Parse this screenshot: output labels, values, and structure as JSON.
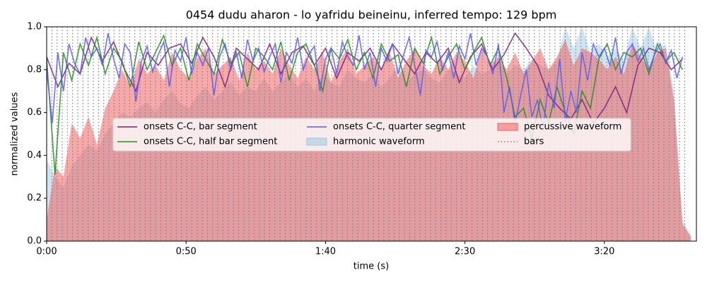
{
  "chart_data": {
    "type": "line",
    "title": "0454 dudu aharon - lo yafridu beineinu, inferred tempo: 129 bpm",
    "xlabel": "time (s)",
    "ylabel": "normalized values",
    "xlim": [
      0,
      233
    ],
    "ylim": [
      0,
      1
    ],
    "xticks": [
      {
        "value": 0,
        "label": "0:00"
      },
      {
        "value": 50,
        "label": "0:50"
      },
      {
        "value": 100,
        "label": "1:40"
      },
      {
        "value": 150,
        "label": "2:30"
      },
      {
        "value": 200,
        "label": "3:20"
      }
    ],
    "yticks": [
      {
        "value": 0,
        "label": "0.0"
      },
      0.2,
      0.4,
      0.6,
      0.8,
      {
        "value": 1,
        "label": "1.0"
      }
    ],
    "legend": "upper center",
    "series": [
      {
        "name": "onsets C-C, bar segment",
        "kind": "line",
        "color": "#7b1f7b",
        "x": [
          0,
          4,
          8,
          12,
          16,
          20,
          24,
          28,
          32,
          36,
          40,
          44,
          48,
          52,
          56,
          60,
          64,
          68,
          72,
          76,
          80,
          84,
          88,
          92,
          96,
          100,
          104,
          108,
          112,
          116,
          120,
          124,
          128,
          132,
          136,
          140,
          144,
          148,
          152,
          156,
          160,
          164,
          168,
          172,
          176,
          180,
          184,
          188,
          192,
          196,
          200,
          204,
          208,
          212,
          216,
          220,
          224,
          228
        ],
        "values": [
          0.86,
          0.72,
          0.83,
          0.78,
          0.95,
          0.84,
          0.93,
          0.8,
          0.7,
          0.88,
          0.82,
          0.9,
          0.92,
          0.83,
          0.95,
          0.86,
          0.72,
          0.9,
          0.85,
          0.8,
          0.92,
          0.78,
          0.88,
          0.91,
          0.82,
          0.9,
          0.76,
          0.88,
          0.84,
          0.9,
          0.8,
          0.92,
          0.85,
          0.78,
          0.88,
          0.83,
          0.9,
          0.74,
          0.86,
          0.92,
          0.8,
          0.87,
          0.97,
          0.9,
          0.82,
          0.68,
          0.62,
          0.57,
          0.66,
          0.55,
          0.62,
          0.72,
          0.6,
          0.82,
          0.9,
          0.88,
          0.8,
          0.85
        ]
      },
      {
        "name": "onsets C-C, half bar segment",
        "kind": "line",
        "color": "#228b22",
        "x": [
          0,
          3,
          6,
          9,
          12,
          15,
          18,
          21,
          24,
          27,
          30,
          33,
          36,
          39,
          42,
          45,
          48,
          51,
          54,
          57,
          60,
          63,
          66,
          69,
          72,
          75,
          78,
          81,
          84,
          87,
          90,
          93,
          96,
          99,
          102,
          105,
          108,
          111,
          114,
          117,
          120,
          123,
          126,
          129,
          132,
          135,
          138,
          141,
          144,
          147,
          150,
          153,
          156,
          159,
          162,
          165,
          168,
          171,
          174,
          177,
          180,
          183,
          186,
          189,
          192,
          195,
          198,
          201,
          204,
          207,
          210,
          213,
          216,
          219,
          222,
          225,
          228
        ],
        "values": [
          0.85,
          0.31,
          0.88,
          0.75,
          0.92,
          0.82,
          0.95,
          0.78,
          0.9,
          0.84,
          0.72,
          0.93,
          0.8,
          0.88,
          0.96,
          0.82,
          0.9,
          0.75,
          0.92,
          0.85,
          0.78,
          0.94,
          0.83,
          0.88,
          0.72,
          0.9,
          0.86,
          0.8,
          0.93,
          0.75,
          0.88,
          0.92,
          0.82,
          0.7,
          0.9,
          0.85,
          0.94,
          0.8,
          0.88,
          0.76,
          0.92,
          0.84,
          0.87,
          0.72,
          0.9,
          0.83,
          0.95,
          0.78,
          0.86,
          0.92,
          0.8,
          0.88,
          0.95,
          0.82,
          0.9,
          0.76,
          0.58,
          0.62,
          0.48,
          0.66,
          0.55,
          0.72,
          0.6,
          0.5,
          0.7,
          0.62,
          0.85,
          0.92,
          0.8,
          0.88,
          0.86,
          0.9,
          0.78,
          0.92,
          0.84,
          0.88,
          0.8
        ]
      },
      {
        "name": "onsets C-C, quarter segment",
        "kind": "line",
        "color": "#5a5af0",
        "x": [
          0,
          2,
          4,
          6,
          8,
          10,
          12,
          14,
          16,
          18,
          20,
          22,
          24,
          26,
          28,
          30,
          32,
          34,
          36,
          38,
          40,
          42,
          44,
          46,
          48,
          50,
          52,
          54,
          56,
          58,
          60,
          62,
          64,
          66,
          68,
          70,
          72,
          74,
          76,
          78,
          80,
          82,
          84,
          86,
          88,
          90,
          92,
          94,
          96,
          98,
          100,
          102,
          104,
          106,
          108,
          110,
          112,
          114,
          116,
          118,
          120,
          122,
          124,
          126,
          128,
          130,
          132,
          134,
          136,
          138,
          140,
          142,
          144,
          146,
          148,
          150,
          152,
          154,
          156,
          158,
          160,
          162,
          164,
          166,
          168,
          170,
          172,
          174,
          176,
          178,
          180,
          182,
          184,
          186,
          188,
          190,
          192,
          194,
          196,
          198,
          200,
          202,
          204,
          206,
          208,
          210,
          212,
          214,
          216,
          218,
          220,
          222,
          224,
          226,
          228
        ],
        "values": [
          0.8,
          0.55,
          0.88,
          0.7,
          0.92,
          0.83,
          0.78,
          0.95,
          0.86,
          0.9,
          0.82,
          0.97,
          0.85,
          0.76,
          0.92,
          0.88,
          0.65,
          0.84,
          0.91,
          0.79,
          0.87,
          0.93,
          0.72,
          0.89,
          0.84,
          0.95,
          0.78,
          0.88,
          0.82,
          0.9,
          0.68,
          0.86,
          0.92,
          0.8,
          0.88,
          0.76,
          0.94,
          0.84,
          0.9,
          0.79,
          0.86,
          0.92,
          0.74,
          0.88,
          0.83,
          0.95,
          0.8,
          0.87,
          0.91,
          0.7,
          0.85,
          0.9,
          0.78,
          0.93,
          0.86,
          0.82,
          0.96,
          0.8,
          0.88,
          0.72,
          0.9,
          0.84,
          0.92,
          0.78,
          0.87,
          0.95,
          0.82,
          0.68,
          0.89,
          0.86,
          0.93,
          0.8,
          0.88,
          0.76,
          0.91,
          0.85,
          0.97,
          0.82,
          0.9,
          0.86,
          0.78,
          0.92,
          0.6,
          0.72,
          0.55,
          0.68,
          0.8,
          0.58,
          0.66,
          0.52,
          0.74,
          0.62,
          0.85,
          0.56,
          0.7,
          0.6,
          0.88,
          0.75,
          0.92,
          0.86,
          0.9,
          0.82,
          0.95,
          0.78,
          0.88,
          0.92,
          0.84,
          0.9,
          0.8,
          0.87,
          0.92,
          0.83,
          0.89,
          0.76,
          0.86
        ]
      },
      {
        "name": "harmonic waveform",
        "kind": "area",
        "color": "#9ec9e2",
        "x": [
          0,
          3,
          6,
          9,
          12,
          15,
          18,
          21,
          24,
          27,
          30,
          33,
          36,
          39,
          42,
          45,
          48,
          51,
          54,
          57,
          60,
          63,
          66,
          69,
          72,
          75,
          78,
          81,
          84,
          87,
          90,
          93,
          96,
          99,
          102,
          105,
          108,
          111,
          114,
          117,
          120,
          123,
          126,
          129,
          132,
          135,
          138,
          141,
          144,
          147,
          150,
          153,
          156,
          159,
          162,
          165,
          168,
          171,
          174,
          177,
          180,
          183,
          186,
          189,
          192,
          195,
          198,
          201,
          204,
          207,
          210,
          213,
          216,
          219,
          222,
          225,
          228,
          231
        ],
        "values": [
          0.38,
          0.3,
          0.25,
          0.35,
          0.4,
          0.45,
          0.42,
          0.5,
          0.55,
          0.6,
          0.58,
          0.62,
          0.65,
          0.6,
          0.66,
          0.7,
          0.64,
          0.62,
          0.68,
          0.72,
          0.66,
          0.7,
          0.74,
          0.68,
          0.72,
          0.7,
          0.76,
          0.7,
          0.74,
          0.78,
          0.72,
          0.76,
          0.7,
          0.78,
          0.74,
          0.72,
          0.8,
          0.76,
          0.74,
          0.78,
          0.72,
          0.76,
          0.82,
          0.74,
          0.78,
          0.8,
          0.76,
          0.74,
          0.8,
          0.78,
          0.76,
          0.82,
          0.78,
          0.8,
          0.84,
          0.78,
          0.82,
          0.8,
          0.85,
          0.82,
          0.8,
          0.84,
          1.0,
          0.9,
          1.0,
          0.88,
          0.92,
          0.86,
          0.9,
          0.84,
          1.0,
          0.9,
          1.0,
          0.88,
          0.92,
          0.7,
          0.1,
          0.03
        ]
      },
      {
        "name": "percussive waveform",
        "kind": "area",
        "color": "#f06060",
        "x": [
          0,
          3,
          6,
          9,
          12,
          15,
          18,
          21,
          24,
          27,
          30,
          33,
          36,
          39,
          42,
          45,
          48,
          51,
          54,
          57,
          60,
          63,
          66,
          69,
          72,
          75,
          78,
          81,
          84,
          87,
          90,
          93,
          96,
          99,
          102,
          105,
          108,
          111,
          114,
          117,
          120,
          123,
          126,
          129,
          132,
          135,
          138,
          141,
          144,
          147,
          150,
          153,
          156,
          159,
          162,
          165,
          168,
          171,
          174,
          177,
          180,
          183,
          186,
          189,
          192,
          195,
          198,
          201,
          204,
          207,
          210,
          213,
          216,
          219,
          222,
          225,
          228,
          231
        ],
        "values": [
          0.1,
          0.35,
          0.3,
          0.55,
          0.48,
          0.58,
          0.45,
          0.62,
          0.7,
          0.8,
          0.72,
          0.85,
          0.78,
          0.82,
          0.75,
          0.88,
          0.8,
          0.76,
          0.85,
          0.9,
          0.78,
          0.82,
          0.86,
          0.75,
          0.88,
          0.8,
          0.84,
          0.78,
          0.9,
          0.82,
          0.76,
          0.86,
          0.8,
          0.88,
          0.74,
          0.84,
          0.9,
          0.78,
          0.82,
          0.86,
          0.8,
          0.88,
          0.76,
          0.84,
          0.9,
          0.82,
          0.78,
          0.86,
          0.8,
          0.88,
          0.84,
          0.76,
          0.9,
          0.82,
          0.86,
          0.8,
          0.88,
          0.78,
          0.84,
          0.9,
          0.8,
          0.86,
          0.94,
          0.82,
          0.9,
          0.88,
          0.85,
          0.8,
          0.86,
          0.78,
          0.92,
          0.86,
          0.8,
          0.88,
          0.9,
          0.65,
          0.08,
          0.02
        ]
      },
      {
        "name": "bars",
        "kind": "vlines",
        "color": "#808080",
        "x": [
          0,
          1.86,
          3.72,
          5.58,
          7.44,
          9.3,
          11.16,
          13.02,
          14.88,
          16.74,
          18.6,
          20.46,
          22.32,
          24.18,
          26.04,
          27.9,
          29.76,
          31.62,
          33.48,
          35.34,
          37.2,
          39.06,
          40.92,
          42.78,
          44.64,
          46.5,
          48.36,
          50.22,
          52.08,
          53.94,
          55.8,
          57.66,
          59.52,
          61.38,
          63.24,
          65.1,
          66.96,
          68.82,
          70.68,
          72.54,
          74.4,
          76.26,
          78.12,
          79.98,
          81.84,
          83.7,
          85.56,
          87.42,
          89.28,
          91.14,
          93,
          94.86,
          96.72,
          98.58,
          100.44,
          102.3,
          104.16,
          106.02,
          107.88,
          109.74,
          111.6,
          113.46,
          115.32,
          117.18,
          119.04,
          120.9,
          122.76,
          124.62,
          126.48,
          128.34,
          130.2,
          132.06,
          133.92,
          135.78,
          137.64,
          139.5,
          141.36,
          143.22,
          145.08,
          146.94,
          148.8,
          150.66,
          152.52,
          154.38,
          156.24,
          158.1,
          159.96,
          161.82,
          163.68,
          165.54,
          167.4,
          169.26,
          171.12,
          172.98,
          174.84,
          176.7,
          178.56,
          180.42,
          182.28,
          184.14,
          186,
          187.86,
          189.72,
          191.58,
          193.44,
          195.3,
          197.16,
          199.02,
          200.88,
          202.74,
          204.6,
          206.46,
          208.32,
          210.18,
          212.04,
          213.9,
          215.76,
          217.62,
          219.48,
          221.34,
          223.2,
          225.06,
          226.92,
          228.78
        ]
      }
    ]
  }
}
